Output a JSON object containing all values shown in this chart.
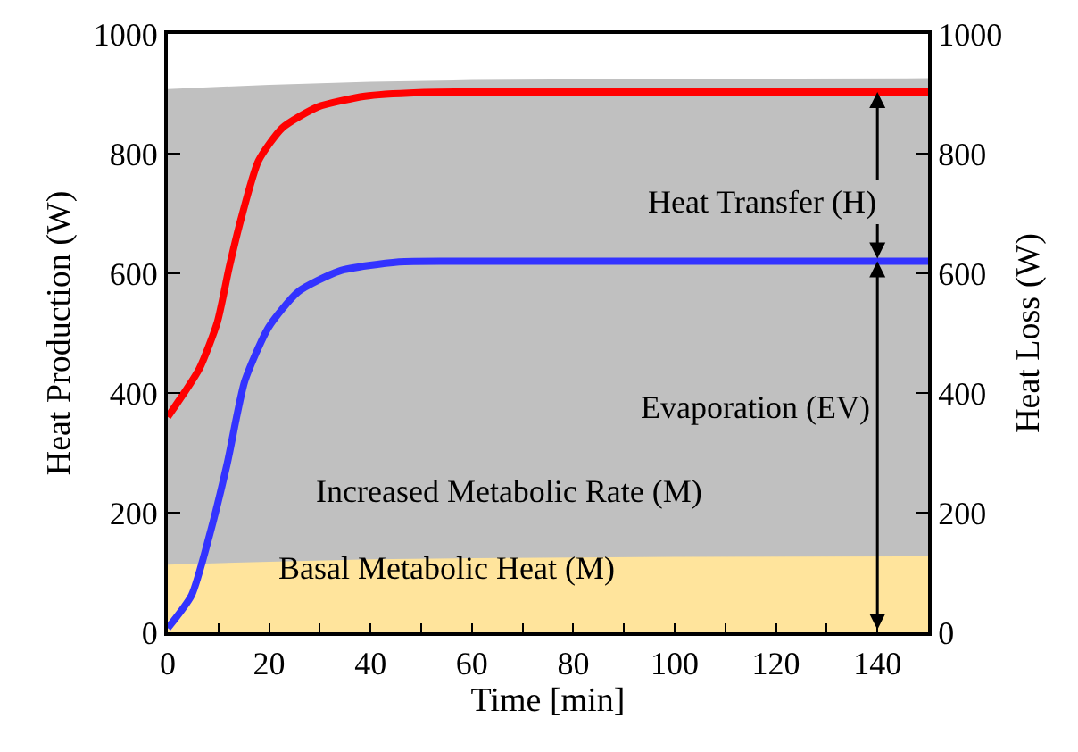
{
  "chart_data": {
    "type": "line",
    "xlabel": "Time [min]",
    "ylabel": "Heat Production (W)",
    "y2label": "Heat Loss (W)",
    "xlim": [
      0,
      150
    ],
    "xticks": [
      0,
      {
        "value": 10,
        "label": null
      },
      20,
      {
        "value": 30,
        "label": null
      },
      40,
      {
        "value": 50,
        "label": null
      },
      60,
      {
        "value": 70,
        "label": null
      },
      80,
      {
        "value": 90,
        "label": null
      },
      100,
      {
        "value": 110,
        "label": null
      },
      120,
      {
        "value": 130,
        "label": null
      },
      140,
      {
        "value": 150,
        "label": null
      }
    ],
    "ylim": [
      0,
      1000
    ],
    "yticks": [
      0,
      200,
      400,
      600,
      800,
      1000
    ],
    "y2lim": [
      0,
      1000
    ],
    "y2ticks": [
      0,
      200,
      400,
      600,
      800,
      1000
    ],
    "marker": "none",
    "line_style": "solid",
    "series": [
      {
        "type": "area",
        "color": "#c0c0c0",
        "x": [
          0,
          20,
          40,
          60,
          100,
          150
        ],
        "values": [
          908,
          915,
          920,
          923,
          925,
          926
        ]
      },
      {
        "type": "area",
        "color": "#ffe49c",
        "x": [
          0,
          20,
          40,
          60,
          100,
          150
        ],
        "values": [
          113,
          118,
          122,
          124,
          126,
          127
        ]
      },
      {
        "color": "#ff0000",
        "x": [
          0,
          6.2,
          9.8,
          12.1,
          14.4,
          17.9,
          22.6,
          29.6,
          38.9,
          49.5,
          60,
          80,
          100,
          120,
          140,
          150
        ],
        "values": [
          360,
          440,
          519,
          609,
          689,
          788,
          843,
          878,
          896,
          902,
          903,
          903,
          903,
          903,
          903,
          903
        ]
      },
      {
        "color": "#3333ff",
        "x": [
          0,
          4.7,
          8.2,
          11.7,
          15.2,
          19.9,
          25.7,
          33.9,
          45.6,
          60,
          80,
          100,
          120,
          140,
          150
        ],
        "values": [
          7,
          62,
          161,
          281,
          420,
          510,
          569,
          604,
          619,
          620,
          620,
          620,
          620,
          620,
          620
        ]
      }
    ],
    "annotations": [
      "Heat Transfer (H)",
      "Evaporation (EV)",
      "Increased Metabolic Rate (M)",
      "Basal Metabolic Heat (M)"
    ]
  }
}
